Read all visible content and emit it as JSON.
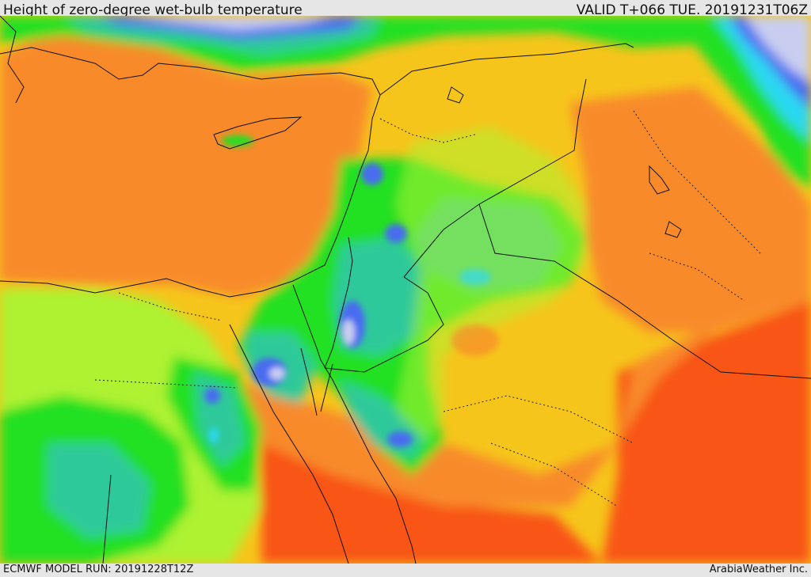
{
  "header": {
    "title": "Height of zero-degree wet-bulb temperature",
    "valid": "VALID T+066 TUE. 20191231T06Z"
  },
  "footer": {
    "model_run": "ECMWF MODEL RUN: 20191228T12Z",
    "credit": "ArabiaWeather Inc."
  },
  "colors": {
    "lavender": "#c9cef0",
    "blue": "#4a6cf0",
    "cyan": "#2cd8f2",
    "teal": "#2ec99a",
    "green": "#22e022",
    "lime": "#aef232",
    "yellow": "#f2ee2a",
    "gold": "#f6c51b",
    "orange": "#f88a2a",
    "red": "#f85418"
  }
}
